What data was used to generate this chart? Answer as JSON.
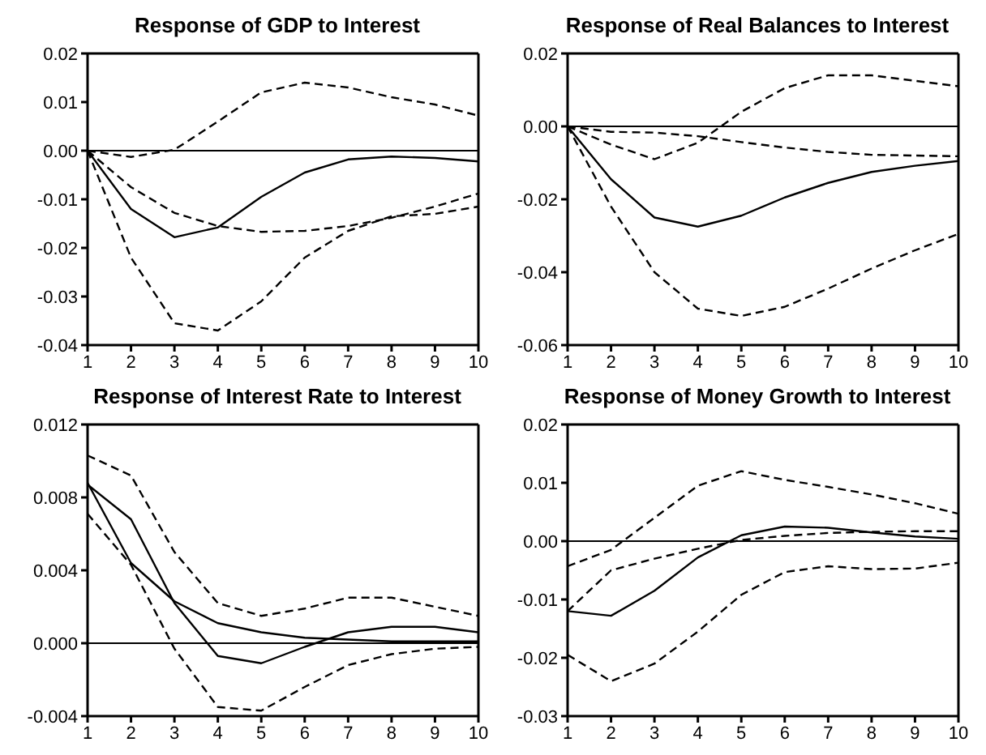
{
  "chart_data": [
    {
      "type": "line",
      "title": "Response of GDP to Interest",
      "x": [
        1,
        2,
        3,
        4,
        5,
        6,
        7,
        8,
        9,
        10
      ],
      "xlim": [
        1,
        10
      ],
      "xticks": [
        1,
        2,
        3,
        4,
        5,
        6,
        7,
        8,
        9,
        10
      ],
      "ylim": [
        -0.04,
        0.02
      ],
      "yticks": [
        {
          "value": -0.04,
          "label": "-0.04"
        },
        {
          "value": -0.03,
          "label": "-0.03"
        },
        {
          "value": -0.02,
          "label": "-0.02"
        },
        {
          "value": -0.01,
          "label": "-0.01"
        },
        {
          "value": 0,
          "label": "0.00"
        },
        {
          "value": 0.01,
          "label": "0.01"
        },
        {
          "value": 0.02,
          "label": "0.02"
        }
      ],
      "grid": false,
      "marker": "none",
      "ref_lines": [
        {
          "axis": "y",
          "value": 0,
          "color": "#000000",
          "line_style": "solid"
        }
      ],
      "series": [
        {
          "color": "#000000",
          "line_style": "solid",
          "values": [
            0,
            -0.012,
            -0.0178,
            -0.0158,
            -0.0095,
            -0.0045,
            -0.0018,
            -0.0012,
            -0.0015,
            -0.0022
          ]
        },
        {
          "color": "#000000",
          "line_style": "dashed",
          "values": [
            0,
            -0.0075,
            -0.0128,
            -0.0155,
            -0.0167,
            -0.0165,
            -0.0155,
            -0.0138,
            -0.0115,
            -0.0088
          ]
        },
        {
          "color": "#000000",
          "line_style": "dashed",
          "values": [
            0,
            -0.0013,
            0.0002,
            0.006,
            0.012,
            0.014,
            0.013,
            0.011,
            0.0095,
            0.0072
          ]
        },
        {
          "color": "#000000",
          "line_style": "dashed",
          "values": [
            0,
            -0.022,
            -0.0355,
            -0.037,
            -0.031,
            -0.022,
            -0.0165,
            -0.0135,
            -0.013,
            -0.0115
          ]
        }
      ]
    },
    {
      "type": "line",
      "title": "Response of Real Balances to Interest",
      "x": [
        1,
        2,
        3,
        4,
        5,
        6,
        7,
        8,
        9,
        10
      ],
      "xlim": [
        1,
        10
      ],
      "xticks": [
        1,
        2,
        3,
        4,
        5,
        6,
        7,
        8,
        9,
        10
      ],
      "ylim": [
        -0.06,
        0.02
      ],
      "yticks": [
        {
          "value": -0.06,
          "label": "-0.06"
        },
        {
          "value": -0.04,
          "label": "-0.04"
        },
        {
          "value": -0.02,
          "label": "-0.02"
        },
        {
          "value": 0,
          "label": "0.00"
        },
        {
          "value": 0.02,
          "label": "0.02"
        }
      ],
      "grid": false,
      "marker": "none",
      "ref_lines": [
        {
          "axis": "y",
          "value": 0,
          "color": "#000000",
          "line_style": "solid"
        }
      ],
      "series": [
        {
          "color": "#000000",
          "line_style": "solid",
          "values": [
            0,
            -0.0145,
            -0.025,
            -0.0275,
            -0.0245,
            -0.0195,
            -0.0155,
            -0.0125,
            -0.0108,
            -0.0095
          ]
        },
        {
          "color": "#000000",
          "line_style": "dashed",
          "values": [
            0,
            -0.0015,
            -0.0017,
            -0.0027,
            -0.0043,
            -0.0058,
            -0.007,
            -0.0078,
            -0.008,
            -0.0082
          ]
        },
        {
          "color": "#000000",
          "line_style": "dashed",
          "values": [
            0,
            -0.005,
            -0.009,
            -0.0045,
            0.004,
            0.0105,
            0.014,
            0.014,
            0.0125,
            0.011
          ]
        },
        {
          "color": "#000000",
          "line_style": "dashed",
          "values": [
            0,
            -0.022,
            -0.04,
            -0.05,
            -0.052,
            -0.0495,
            -0.0445,
            -0.039,
            -0.034,
            -0.0295
          ]
        }
      ]
    },
    {
      "type": "line",
      "title": "Response of Interest Rate to Interest",
      "x": [
        1,
        2,
        3,
        4,
        5,
        6,
        7,
        8,
        9,
        10
      ],
      "xlim": [
        1,
        10
      ],
      "xticks": [
        1,
        2,
        3,
        4,
        5,
        6,
        7,
        8,
        9,
        10
      ],
      "ylim": [
        -0.004,
        0.012
      ],
      "yticks": [
        {
          "value": -0.004,
          "label": "-0.004"
        },
        {
          "value": 0,
          "label": "0.000"
        },
        {
          "value": 0.004,
          "label": "0.004"
        },
        {
          "value": 0.008,
          "label": "0.008"
        },
        {
          "value": 0.012,
          "label": "0.012"
        }
      ],
      "grid": false,
      "marker": "none",
      "ref_lines": [
        {
          "axis": "y",
          "value": 0,
          "color": "#000000",
          "line_style": "solid"
        }
      ],
      "series": [
        {
          "color": "#000000",
          "line_style": "solid",
          "values": [
            0.0087,
            0.0068,
            0.0022,
            -0.0007,
            -0.0011,
            -0.0002,
            0.0006,
            0.0009,
            0.0009,
            0.0006
          ]
        },
        {
          "color": "#000000",
          "line_style": "solid",
          "values": [
            0.0088,
            0.0044,
            0.0023,
            0.0011,
            0.0006,
            0.0003,
            0.0002,
            0.0001,
            0.0001,
            0.0001
          ]
        },
        {
          "color": "#000000",
          "line_style": "dashed",
          "values": [
            0.0103,
            0.0092,
            0.005,
            0.0022,
            0.0015,
            0.0019,
            0.0025,
            0.0025,
            0.002,
            0.0015
          ]
        },
        {
          "color": "#000000",
          "line_style": "dashed",
          "values": [
            0.0071,
            0.0043,
            -0.0003,
            -0.0035,
            -0.0037,
            -0.0024,
            -0.0012,
            -0.0006,
            -0.0003,
            -0.0002
          ]
        }
      ]
    },
    {
      "type": "line",
      "title": "Response of Money Growth to Interest",
      "x": [
        1,
        2,
        3,
        4,
        5,
        6,
        7,
        8,
        9,
        10
      ],
      "xlim": [
        1,
        10
      ],
      "xticks": [
        1,
        2,
        3,
        4,
        5,
        6,
        7,
        8,
        9,
        10
      ],
      "ylim": [
        -0.03,
        0.02
      ],
      "yticks": [
        {
          "value": -0.03,
          "label": "-0.03"
        },
        {
          "value": -0.02,
          "label": "-0.02"
        },
        {
          "value": -0.01,
          "label": "-0.01"
        },
        {
          "value": 0,
          "label": "0.00"
        },
        {
          "value": 0.01,
          "label": "0.01"
        },
        {
          "value": 0.02,
          "label": "0.02"
        }
      ],
      "grid": false,
      "marker": "none",
      "ref_lines": [
        {
          "axis": "y",
          "value": 0,
          "color": "#000000",
          "line_style": "solid"
        }
      ],
      "series": [
        {
          "color": "#000000",
          "line_style": "solid",
          "values": [
            -0.012,
            -0.0128,
            -0.0085,
            -0.0028,
            0.001,
            0.0025,
            0.0023,
            0.0015,
            0.0008,
            0.0004
          ]
        },
        {
          "color": "#000000",
          "line_style": "dashed",
          "values": [
            -0.012,
            -0.005,
            -0.003,
            -0.0013,
            0.0002,
            0.0009,
            0.0014,
            0.0016,
            0.0017,
            0.0017
          ]
        },
        {
          "color": "#000000",
          "line_style": "dashed",
          "values": [
            -0.0043,
            -0.0015,
            0.004,
            0.0095,
            0.012,
            0.0105,
            0.0093,
            0.008,
            0.0065,
            0.0047
          ]
        },
        {
          "color": "#000000",
          "line_style": "dashed",
          "values": [
            -0.0195,
            -0.024,
            -0.021,
            -0.0155,
            -0.0092,
            -0.0053,
            -0.0043,
            -0.0048,
            -0.0047,
            -0.0037
          ]
        }
      ]
    }
  ]
}
